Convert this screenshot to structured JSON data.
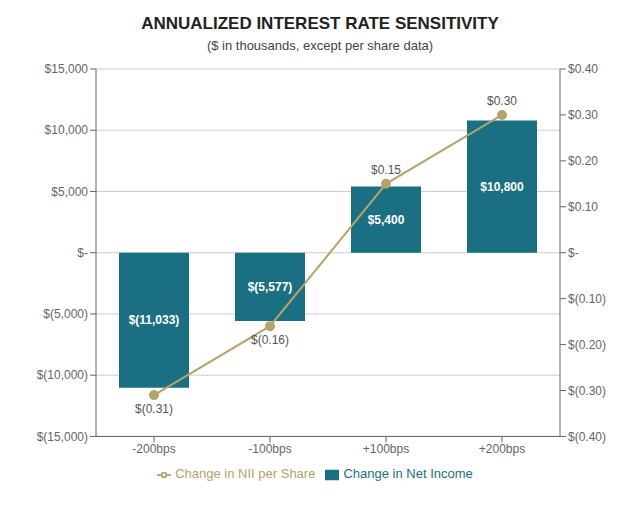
{
  "chart_data": {
    "type": "bar",
    "title": "ANNUALIZED INTEREST RATE SENSITIVITY",
    "subtitle": "($ in thousands, except per share data)",
    "categories": [
      "-200bps",
      "-100bps",
      "+100bps",
      "+200bps"
    ],
    "series": [
      {
        "name": "Change in Net Income",
        "type": "bar",
        "color": "#1a6f82",
        "values": [
          -11033,
          -5577,
          5400,
          10800
        ],
        "value_labels": [
          "$(11,033)",
          "$(5,577)",
          "$5,400",
          "$10,800"
        ]
      },
      {
        "name": "Change in NII per Share",
        "type": "line",
        "color": "#b5a36a",
        "axis": "y2",
        "marker": "circle",
        "values": [
          -0.31,
          -0.16,
          0.15,
          0.3
        ],
        "value_labels": [
          "$(0.31)",
          "$(0.16)",
          "$0.15",
          "$0.30"
        ]
      }
    ],
    "ylim": [
      -15000,
      15000
    ],
    "yticks": [
      {
        "value": -15000,
        "label": "$(15,000)"
      },
      {
        "value": -10000,
        "label": "$(10,000)"
      },
      {
        "value": -5000,
        "label": "$(5,000)"
      },
      {
        "value": 0,
        "label": "$-"
      },
      {
        "value": 5000,
        "label": "$5,000"
      },
      {
        "value": 10000,
        "label": "$10,000"
      },
      {
        "value": 15000,
        "label": "$15,000"
      }
    ],
    "y2lim": [
      -0.4,
      0.4
    ],
    "y2ticks": [
      {
        "value": -0.4,
        "label": "$(0.40)"
      },
      {
        "value": -0.3,
        "label": "$(0.30)"
      },
      {
        "value": -0.2,
        "label": "$(0.20)"
      },
      {
        "value": -0.1,
        "label": "$(0.10)"
      },
      {
        "value": 0.0,
        "label": "$-"
      },
      {
        "value": 0.1,
        "label": "$0.10"
      },
      {
        "value": 0.2,
        "label": "$0.20"
      },
      {
        "value": 0.3,
        "label": "$0.30"
      },
      {
        "value": 0.4,
        "label": "$0.40"
      }
    ],
    "grid": true,
    "legend": "bottom",
    "data_labels": true
  }
}
